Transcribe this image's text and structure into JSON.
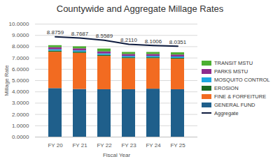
{
  "chart_data": {
    "type": "bar",
    "stacked": true,
    "title": "Countywide and Aggregate Millage Rates",
    "x_label": "Fiscal Year",
    "y_label": "Millage Rate",
    "categories": [
      "FY 20",
      "FY 21",
      "FY 22",
      "FY 23",
      "FY 24",
      "FY 25"
    ],
    "ylim": [
      0,
      10
    ],
    "yticks": [
      {
        "value": 0,
        "label": "0.0000"
      },
      {
        "value": 1,
        "label": "1.0000"
      },
      {
        "value": 2,
        "label": "2.0000"
      },
      {
        "value": 3,
        "label": "3.0000"
      },
      {
        "value": 4,
        "label": "4.0000"
      },
      {
        "value": 5,
        "label": "5.0000"
      },
      {
        "value": 6,
        "label": "6.0000"
      },
      {
        "value": 7,
        "label": "7.0000"
      },
      {
        "value": 8,
        "label": "8.0000"
      },
      {
        "value": 9,
        "label": "9.0000"
      },
      {
        "value": 10,
        "label": "10.0000"
      }
    ],
    "grid": true,
    "legend": "right",
    "series": [
      {
        "name": "GENERAL FUND",
        "type": "bar",
        "color": "#1f5f8b",
        "values": [
          4.3,
          4.22,
          4.2,
          4.2,
          4.25,
          4.2
        ]
      },
      {
        "name": "FINE & FORFEITURE",
        "type": "bar",
        "color": "#f26b21",
        "values": [
          3.22,
          3.2,
          2.95,
          2.75,
          2.7,
          2.7
        ]
      },
      {
        "name": "EROSION",
        "type": "bar",
        "color": "#1e6b24",
        "values": [
          0.1,
          0.1,
          0.1,
          0.08,
          0.08,
          0.08
        ]
      },
      {
        "name": "MOSQUITO CONTROL",
        "type": "bar",
        "color": "#1ea7e1",
        "values": [
          0.12,
          0.12,
          0.12,
          0.12,
          0.12,
          0.12
        ]
      },
      {
        "name": "PARKS MSTU",
        "type": "bar",
        "color": "#8e2c8e",
        "values": [
          0.18,
          0.18,
          0.18,
          0.17,
          0.17,
          0.17
        ]
      },
      {
        "name": "TRANSIT MSTU",
        "type": "bar",
        "color": "#4caf32",
        "values": [
          0.18,
          0.18,
          0.25,
          0.18,
          0.18,
          0.2
        ]
      },
      {
        "name": "Aggregate",
        "type": "line",
        "color": "#0d1b3e",
        "data_labels": true,
        "values": [
          8.8759,
          8.7687,
          8.5589,
          8.211,
          8.1006,
          8.0351
        ],
        "value_labels": [
          "8.8759",
          "8.7687",
          "8.5589",
          "8.2110",
          "8.1006",
          "8.0351"
        ]
      }
    ]
  }
}
